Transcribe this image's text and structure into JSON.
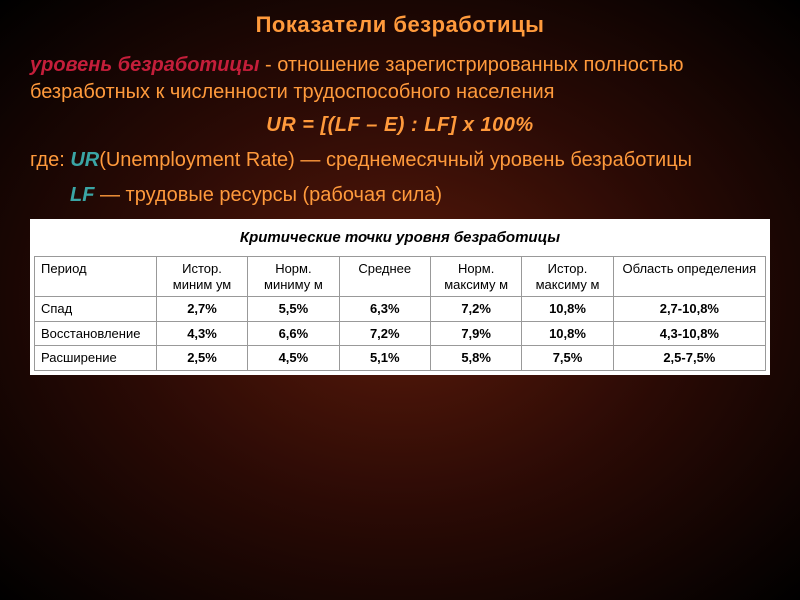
{
  "title": "Показатели безработицы",
  "def": {
    "term": "уровень безработицы",
    "text": " - отношение зарегистрированных полностью безработных к численности трудоспособного населения"
  },
  "formula": "UR = [(LF – E) : LF] х 100%",
  "where_label": "где: ",
  "ur": {
    "var": "UR",
    "desc": "(Unemployment Rate) — среднемесячный уровень безработицы"
  },
  "lf": {
    "var": "LF",
    "desc": " — трудовые ресурсы (рабочая сила)"
  },
  "table": {
    "title": "Критические точки уровня безработицы",
    "columns": [
      "Период",
      "Истор. миним ум",
      "Норм. миниму м",
      "Среднее",
      "Норм. максиму м",
      "Истор. максиму м",
      "Область определения"
    ],
    "rows": [
      [
        "Спад",
        "2,7%",
        "5,5%",
        "6,3%",
        "7,2%",
        "10,8%",
        "2,7-10,8%"
      ],
      [
        "Восстановление",
        "4,3%",
        "6,6%",
        "7,2%",
        "7,9%",
        "10,8%",
        "4,3-10,8%"
      ],
      [
        "Расширение",
        "2,5%",
        "4,5%",
        "5,1%",
        "5,8%",
        "7,5%",
        "2,5-7,5%"
      ]
    ]
  },
  "colors": {
    "title": "#ff9a3c",
    "term": "#c41e3a",
    "var": "#3aa5a5",
    "bg_center": "#5a1a0a",
    "bg_outer": "#000000",
    "table_bg": "#ffffff",
    "border": "#999999"
  },
  "fonts": {
    "title_size": 22,
    "body_size": 20,
    "table_title_size": 15,
    "cell_size": 13
  }
}
